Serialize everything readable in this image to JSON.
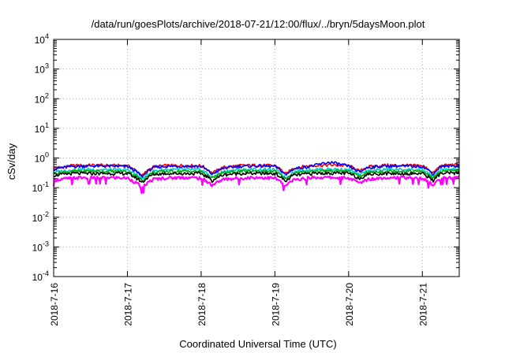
{
  "chart_data": {
    "type": "area",
    "title": "/data/run/goesPlots/archive/2018-07-21/12:00/flux/../bryn/5daysMoon.plot",
    "xlabel": "Coordinated Universal Time (UTC)",
    "ylabel": "cSv/day",
    "yscale": "log",
    "ylim": [
      0.0001,
      10000
    ],
    "xlim": [
      "2018-07-16 00:00",
      "2018-07-21 12:00"
    ],
    "grid": true,
    "y_ticks": [
      {
        "base": "10",
        "exp": "-4"
      },
      {
        "base": "10",
        "exp": "-3"
      },
      {
        "base": "10",
        "exp": "-2"
      },
      {
        "base": "10",
        "exp": "-1"
      },
      {
        "base": "10",
        "exp": "0"
      },
      {
        "base": "10",
        "exp": "1"
      },
      {
        "base": "10",
        "exp": "2"
      },
      {
        "base": "10",
        "exp": "3"
      },
      {
        "base": "10",
        "exp": "4"
      }
    ],
    "x_ticks": [
      "2018-7-16",
      "2018-7-17",
      "2018-7-18",
      "2018-7-19",
      "2018-7-20",
      "2018-7-21"
    ],
    "x_days": [
      0,
      0.25,
      0.5,
      0.75,
      1.0,
      1.2,
      1.35,
      1.5,
      1.75,
      2.0,
      2.15,
      2.3,
      2.5,
      2.75,
      3.0,
      3.15,
      3.25,
      3.5,
      3.75,
      4.0,
      4.15,
      4.25,
      4.5,
      4.75,
      5.0,
      5.15,
      5.25,
      5.5
    ],
    "series": [
      {
        "color": "#ff0000",
        "values": [
          0.45,
          0.55,
          0.57,
          0.56,
          0.55,
          0.25,
          0.5,
          0.55,
          0.56,
          0.55,
          0.3,
          0.48,
          0.55,
          0.57,
          0.55,
          0.28,
          0.45,
          0.56,
          0.58,
          0.55,
          0.35,
          0.5,
          0.57,
          0.56,
          0.55,
          0.3,
          0.55,
          0.6
        ]
      },
      {
        "color": "#0000ff",
        "values": [
          0.42,
          0.52,
          0.54,
          0.53,
          0.52,
          0.23,
          0.47,
          0.52,
          0.53,
          0.52,
          0.28,
          0.45,
          0.52,
          0.54,
          0.52,
          0.26,
          0.43,
          0.53,
          0.72,
          0.52,
          0.33,
          0.47,
          0.54,
          0.53,
          0.52,
          0.28,
          0.52,
          0.55
        ]
      },
      {
        "color": "#00cccc",
        "values": [
          0.33,
          0.4,
          0.41,
          0.4,
          0.4,
          0.19,
          0.36,
          0.4,
          0.41,
          0.4,
          0.22,
          0.35,
          0.4,
          0.41,
          0.4,
          0.21,
          0.34,
          0.41,
          0.42,
          0.4,
          0.26,
          0.36,
          0.41,
          0.41,
          0.4,
          0.22,
          0.4,
          0.42
        ]
      },
      {
        "color": "#00aa00",
        "values": [
          0.3,
          0.35,
          0.36,
          0.35,
          0.35,
          0.17,
          0.32,
          0.35,
          0.36,
          0.35,
          0.2,
          0.31,
          0.35,
          0.36,
          0.35,
          0.19,
          0.3,
          0.36,
          0.37,
          0.35,
          0.23,
          0.32,
          0.36,
          0.36,
          0.35,
          0.2,
          0.35,
          0.37
        ]
      },
      {
        "color": "#000000",
        "values": [
          0.26,
          0.3,
          0.3,
          0.3,
          0.3,
          0.15,
          0.28,
          0.3,
          0.3,
          0.3,
          0.17,
          0.27,
          0.3,
          0.3,
          0.3,
          0.16,
          0.26,
          0.3,
          0.31,
          0.3,
          0.2,
          0.28,
          0.3,
          0.3,
          0.3,
          0.17,
          0.3,
          0.31
        ]
      },
      {
        "color": "#ff00ff",
        "values": [
          0.18,
          0.21,
          0.22,
          0.22,
          0.21,
          0.1,
          0.19,
          0.21,
          0.22,
          0.21,
          0.12,
          0.19,
          0.21,
          0.22,
          0.21,
          0.11,
          0.18,
          0.22,
          0.22,
          0.21,
          0.14,
          0.19,
          0.22,
          0.22,
          0.21,
          0.12,
          0.21,
          0.22
        ]
      }
    ]
  }
}
